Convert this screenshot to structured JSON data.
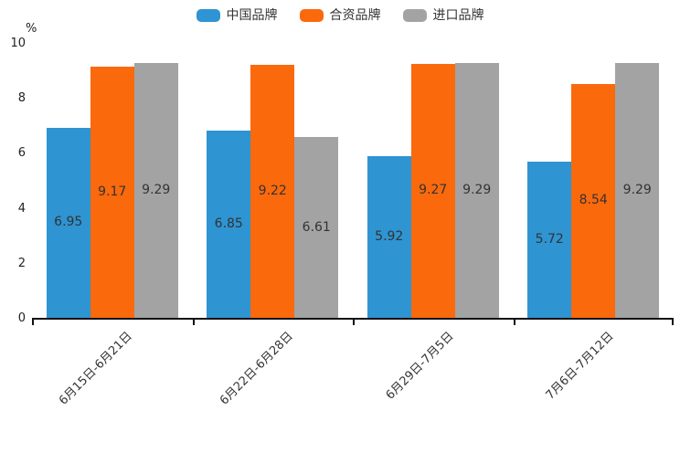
{
  "chart": {
    "unit_label": "%"
  },
  "chart_data": {
    "type": "bar",
    "title": "",
    "categories": [
      "6月15日-6月21日",
      "6月22日-6月28日",
      "6月29日-7月5日",
      "7月6日-7月12日"
    ],
    "series": [
      {
        "name": "中国品牌",
        "color": "#2E94D2",
        "values": [
          6.95,
          6.85,
          5.92,
          5.72
        ]
      },
      {
        "name": "合资品牌",
        "color": "#FB690D",
        "values": [
          9.17,
          9.22,
          9.27,
          8.54
        ]
      },
      {
        "name": "进口品牌",
        "color": "#A3A3A3",
        "values": [
          9.29,
          6.61,
          9.29,
          9.29
        ]
      }
    ],
    "xlabel": "",
    "ylabel": "%",
    "ylim": [
      0,
      10
    ],
    "yticks": [
      0,
      2,
      4,
      6,
      8,
      10
    ],
    "grid": false,
    "legend_position": "top",
    "value_labels": "inside-middle",
    "value_label_color": "#333333",
    "axis_color": "#111111",
    "tick_label_color": "#222222"
  }
}
